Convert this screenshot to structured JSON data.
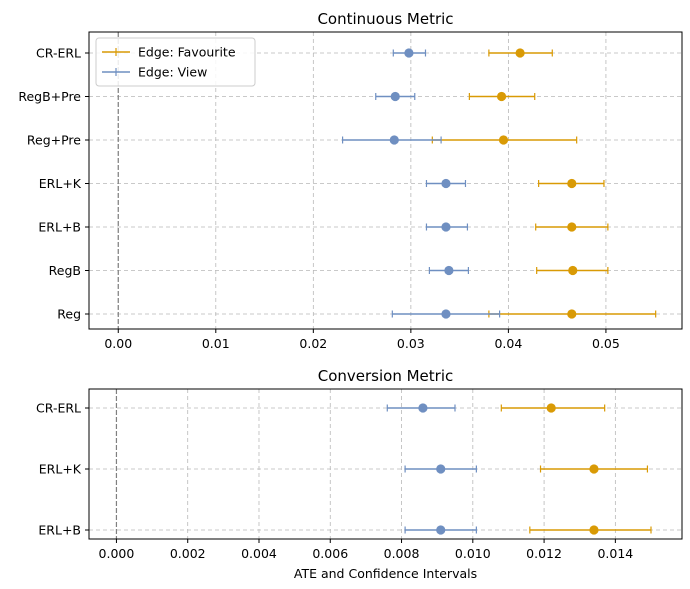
{
  "chart_data": [
    {
      "type": "errorbar",
      "title": "Continuous Metric",
      "xlabel": "",
      "xlim": [
        -0.003,
        0.0578
      ],
      "xticks": [
        0.0,
        0.01,
        0.02,
        0.03,
        0.04,
        0.05
      ],
      "xtick_labels": [
        "0.00",
        "0.01",
        "0.02",
        "0.03",
        "0.04",
        "0.05"
      ],
      "categories": [
        "CR-ERL",
        "RegB+Pre",
        "Reg+Pre",
        "ERL+K",
        "ERL+B",
        "RegB",
        "Reg"
      ],
      "reference_line_x": 0.0,
      "grid": true,
      "legend_position": "top-left",
      "series": [
        {
          "name": "Edge: Favourite",
          "color": "#d99a05",
          "points": [
            {
              "y": "CR-ERL",
              "x": 0.0412,
              "lo": 0.038,
              "hi": 0.0445
            },
            {
              "y": "RegB+Pre",
              "x": 0.0393,
              "lo": 0.036,
              "hi": 0.0427
            },
            {
              "y": "Reg+Pre",
              "x": 0.0395,
              "lo": 0.0322,
              "hi": 0.047
            },
            {
              "y": "ERL+K",
              "x": 0.0465,
              "lo": 0.0431,
              "hi": 0.0498
            },
            {
              "y": "ERL+B",
              "x": 0.0465,
              "lo": 0.0428,
              "hi": 0.0502
            },
            {
              "y": "RegB",
              "x": 0.0466,
              "lo": 0.0429,
              "hi": 0.0502
            },
            {
              "y": "Reg",
              "x": 0.0465,
              "lo": 0.038,
              "hi": 0.0551
            }
          ]
        },
        {
          "name": "Edge: View",
          "color": "#6f8fc1",
          "points": [
            {
              "y": "CR-ERL",
              "x": 0.0298,
              "lo": 0.0282,
              "hi": 0.0315
            },
            {
              "y": "RegB+Pre",
              "x": 0.0284,
              "lo": 0.0264,
              "hi": 0.0304
            },
            {
              "y": "Reg+Pre",
              "x": 0.0283,
              "lo": 0.023,
              "hi": 0.0331
            },
            {
              "y": "ERL+K",
              "x": 0.0336,
              "lo": 0.0316,
              "hi": 0.0356
            },
            {
              "y": "ERL+B",
              "x": 0.0336,
              "lo": 0.0316,
              "hi": 0.0358
            },
            {
              "y": "RegB",
              "x": 0.0339,
              "lo": 0.0319,
              "hi": 0.0359
            },
            {
              "y": "Reg",
              "x": 0.0336,
              "lo": 0.0281,
              "hi": 0.0391
            }
          ]
        }
      ]
    },
    {
      "type": "errorbar",
      "title": "Conversion Metric",
      "xlabel": "ATE and Confidence Intervals",
      "xlim": [
        -0.00077,
        0.01587
      ],
      "xticks": [
        0.0,
        0.002,
        0.004,
        0.006,
        0.008,
        0.01,
        0.012,
        0.014
      ],
      "xtick_labels": [
        "0.000",
        "0.002",
        "0.004",
        "0.006",
        "0.008",
        "0.010",
        "0.012",
        "0.014"
      ],
      "categories": [
        "CR-ERL",
        "ERL+K",
        "ERL+B"
      ],
      "reference_line_x": 0.0,
      "grid": true,
      "series": [
        {
          "name": "Edge: Favourite",
          "color": "#d99a05",
          "points": [
            {
              "y": "CR-ERL",
              "x": 0.0122,
              "lo": 0.0108,
              "hi": 0.0137
            },
            {
              "y": "ERL+K",
              "x": 0.0134,
              "lo": 0.0119,
              "hi": 0.0149
            },
            {
              "y": "ERL+B",
              "x": 0.0134,
              "lo": 0.0116,
              "hi": 0.015
            }
          ]
        },
        {
          "name": "Edge: View",
          "color": "#6f8fc1",
          "points": [
            {
              "y": "CR-ERL",
              "x": 0.0086,
              "lo": 0.0076,
              "hi": 0.0095
            },
            {
              "y": "ERL+K",
              "x": 0.0091,
              "lo": 0.0081,
              "hi": 0.0101
            },
            {
              "y": "ERL+B",
              "x": 0.0091,
              "lo": 0.0081,
              "hi": 0.0101
            }
          ]
        }
      ]
    }
  ]
}
